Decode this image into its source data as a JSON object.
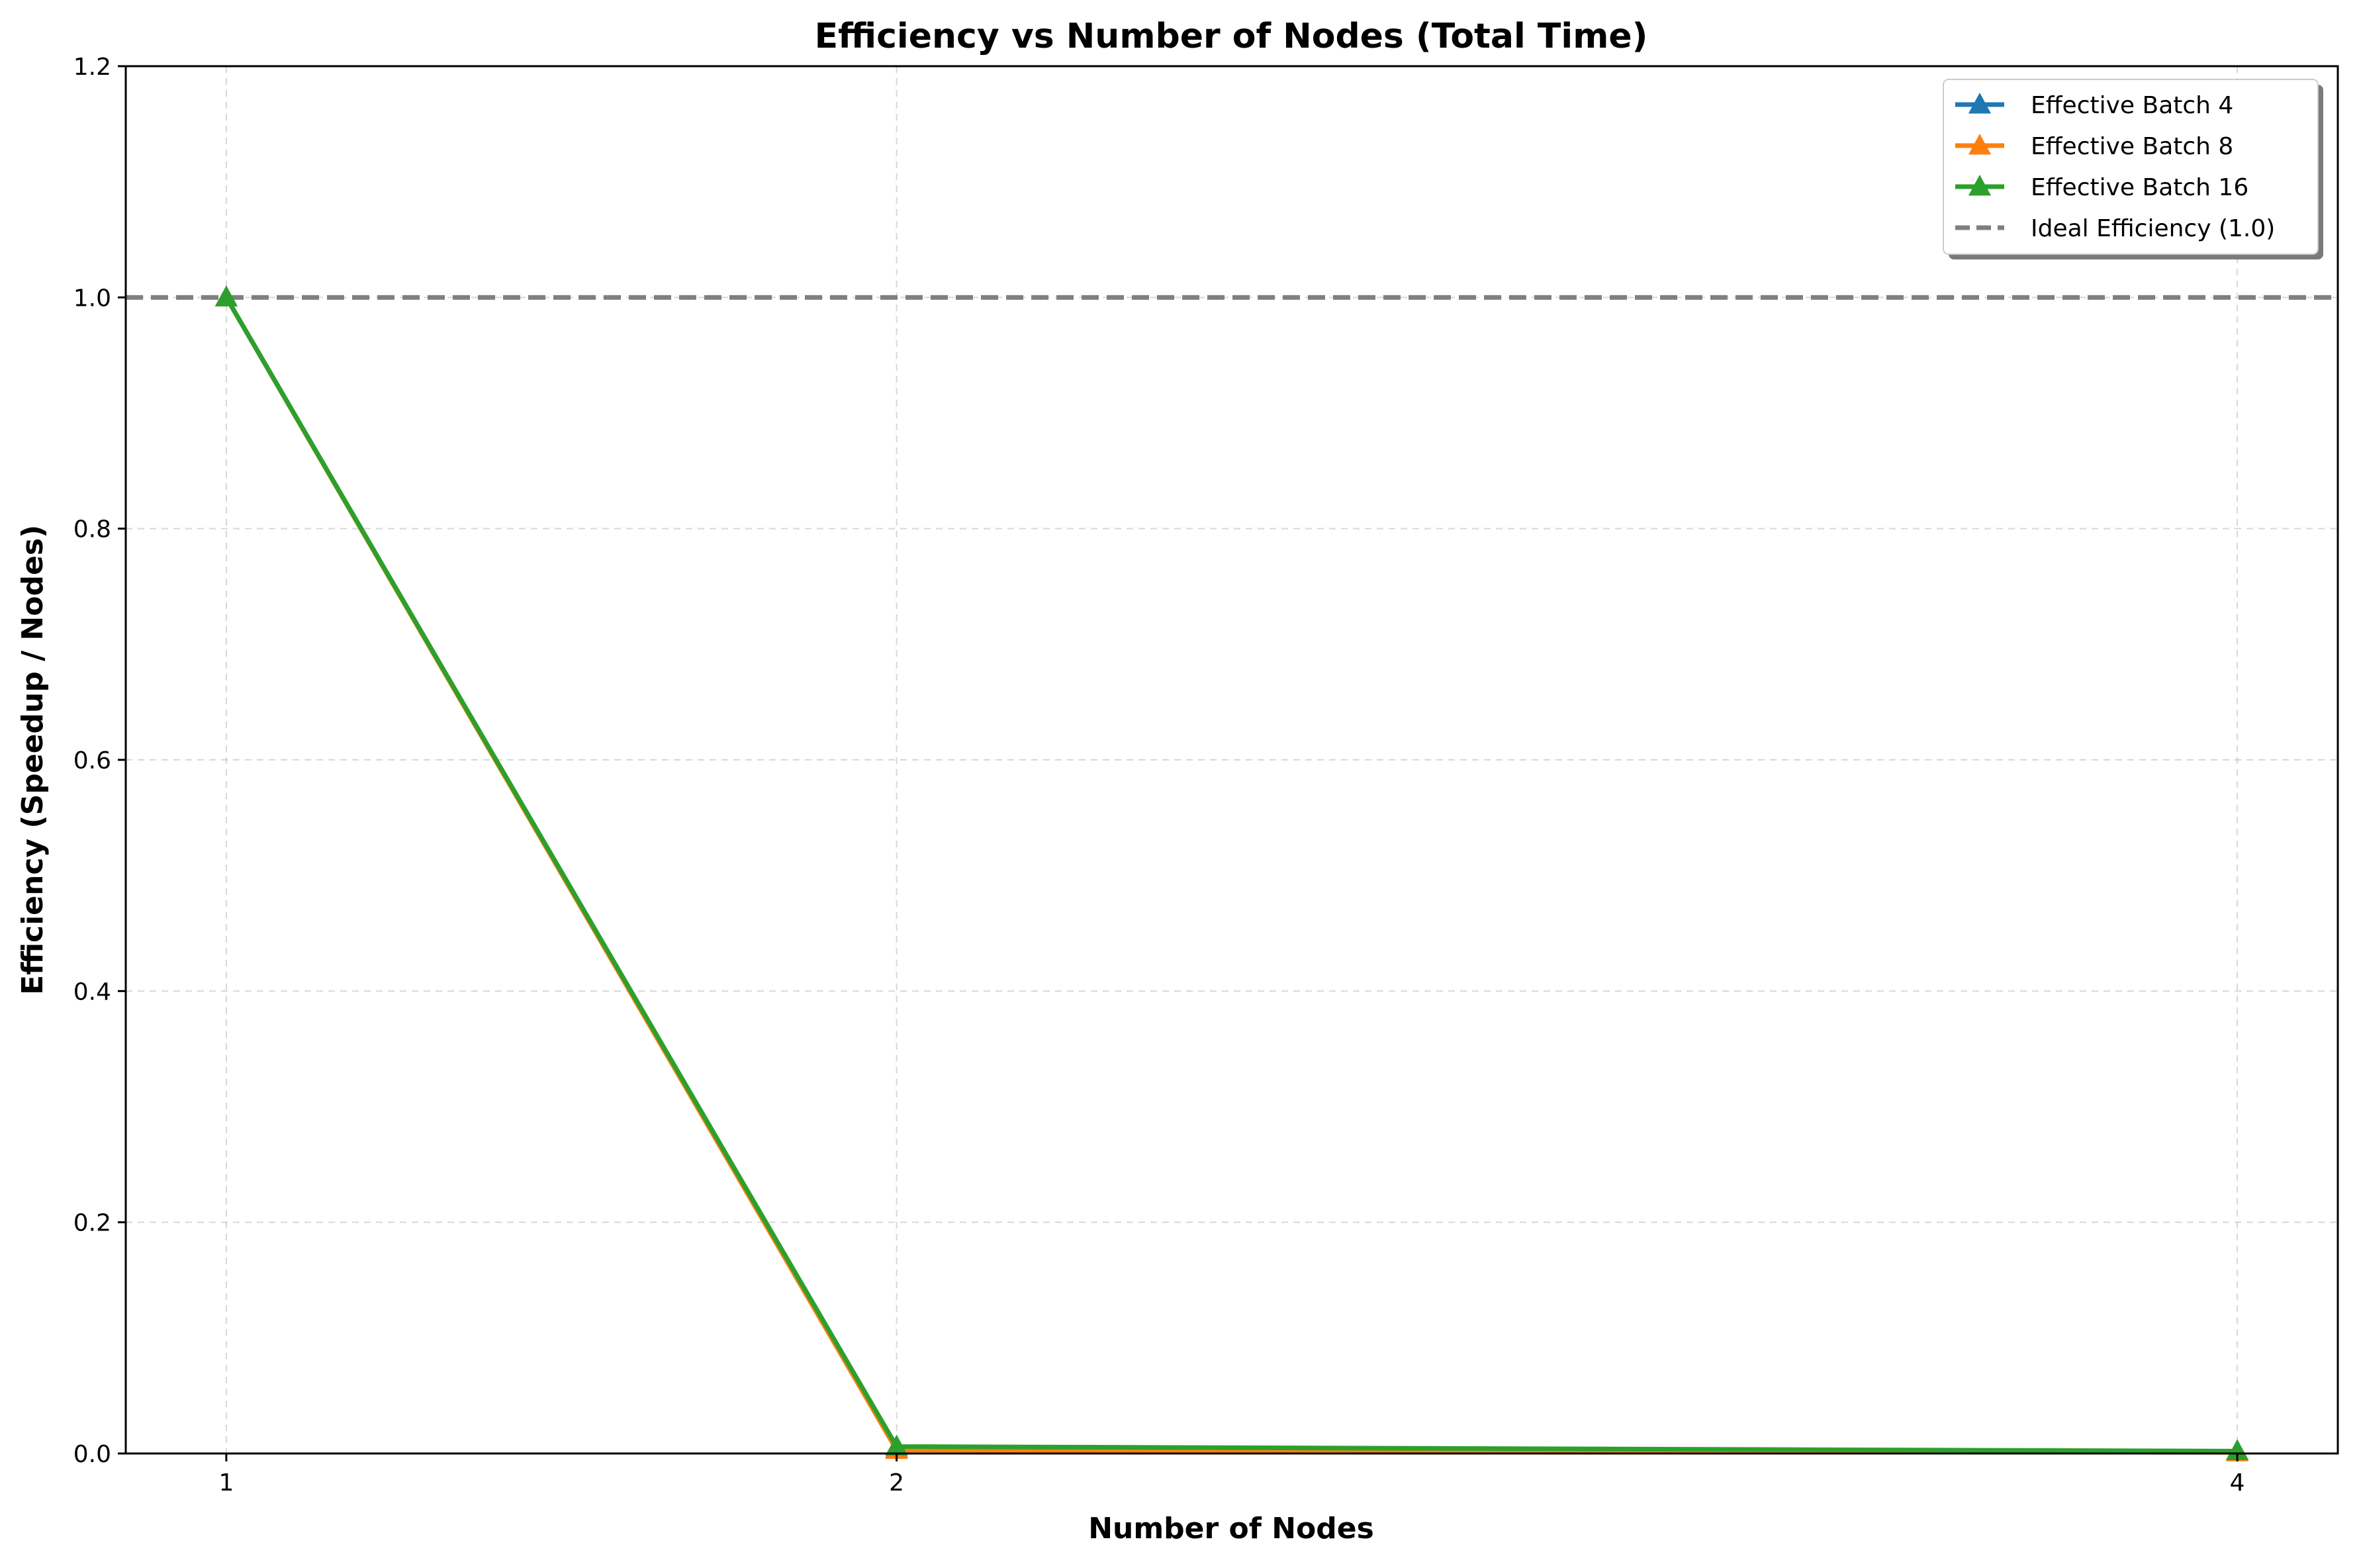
{
  "chart_data": {
    "type": "line",
    "title": "Efficiency vs Number of Nodes (Total Time)",
    "xlabel": "Number of Nodes",
    "ylabel": "Efficiency (Speedup / Nodes)",
    "x": [
      1,
      2,
      4
    ],
    "x_tick_labels": [
      "1",
      "2",
      "4"
    ],
    "y_ticks": [
      "0.0",
      "0.2",
      "0.4",
      "0.6",
      "0.8",
      "1.0",
      "1.2"
    ],
    "xlim": [
      0.85,
      4.15
    ],
    "ylim": [
      0,
      1.2
    ],
    "grid": true,
    "legend_position": "top-right",
    "series": [
      {
        "name": "Effective Batch 4",
        "values": [
          1.0,
          0.004,
          0.002
        ],
        "color": "#1f77b4",
        "marker": "triangle-up"
      },
      {
        "name": "Effective Batch 8",
        "values": [
          1.0,
          0.003,
          0.001
        ],
        "color": "#ff7f0e",
        "marker": "triangle-up"
      },
      {
        "name": "Effective Batch 16",
        "values": [
          1.0,
          0.006,
          0.002
        ],
        "color": "#2ca02c",
        "marker": "triangle-up"
      }
    ],
    "reference_line": {
      "name": "Ideal Efficiency (1.0)",
      "y": 1.0,
      "color": "#7f7f7f",
      "style": "dashed"
    }
  }
}
